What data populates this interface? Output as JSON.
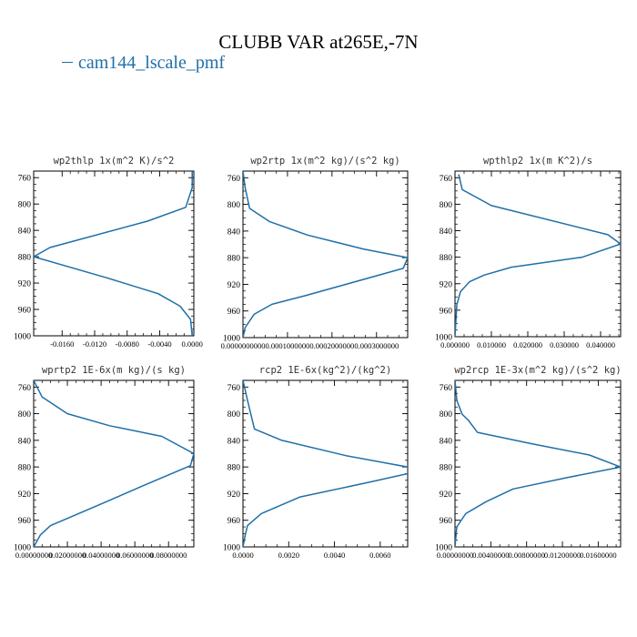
{
  "figure_title": "CLUBB VAR at265E,-7N",
  "legend_label": "cam144_lscale_pmf",
  "colors": {
    "line": "#1f6fa8",
    "axes": "#000000",
    "text": "#333333"
  },
  "chart_data": [
    {
      "type": "line",
      "title": "wp2thlp  1x(m^2 K)/s^2",
      "xlim": [
        -0.0195,
        0.0002
      ],
      "ylim": [
        1000,
        750
      ],
      "y_ticks": [
        760,
        800,
        840,
        880,
        920,
        960,
        1000
      ],
      "x_ticks": [
        -0.016,
        -0.012,
        -0.008,
        -0.004,
        0.0
      ],
      "x_tick_labels": [
        "-0.0160",
        "-0.0120",
        "-0.0080",
        "-0.0040",
        "0.0000"
      ],
      "series": [
        {
          "x": [
            0.0,
            0.0,
            -0.0008,
            -0.0055,
            -0.0175,
            -0.0195,
            -0.0105,
            -0.0042,
            -0.0015,
            -0.0002,
            0.0
          ],
          "y": [
            750,
            775,
            805,
            826,
            866,
            880,
            912,
            936,
            955,
            975,
            1000
          ]
        }
      ]
    },
    {
      "type": "line",
      "title": "wp2rtp  1x(m^2 kg)/(s^2 kg)",
      "xlim": [
        0.0,
        0.00037
      ],
      "ylim": [
        1000,
        750
      ],
      "y_ticks": [
        760,
        800,
        840,
        880,
        920,
        960,
        1000
      ],
      "x_ticks": [
        0.0,
        0.0001,
        0.0002,
        0.0003
      ],
      "x_tick_labels": [
        "0.0000000000",
        "0.0001000000",
        "0.0002000000",
        "0.0003000000"
      ],
      "series": [
        {
          "x": [
            0.0,
            5e-06,
            1.5e-05,
            6e-05,
            0.000145,
            0.00027,
            0.00037,
            0.00036,
            0.00014,
            6.5e-05,
            2.5e-05,
            5e-06,
            0.0
          ],
          "y": [
            750,
            775,
            806,
            826,
            846,
            867,
            880,
            896,
            937,
            950,
            965,
            985,
            1000
          ]
        }
      ]
    },
    {
      "type": "line",
      "title": "wpthlp2  1x(m K^2)/s",
      "xlim": [
        0.0,
        0.0455
      ],
      "ylim": [
        1000,
        750
      ],
      "y_ticks": [
        760,
        800,
        840,
        880,
        920,
        960,
        1000
      ],
      "x_ticks": [
        0.0,
        0.01,
        0.02,
        0.03,
        0.04
      ],
      "x_tick_labels": [
        "0.000000",
        "0.010000",
        "0.020000",
        "0.030000",
        "0.040000"
      ],
      "series": [
        {
          "x": [
            0.001,
            0.002,
            0.01,
            0.042,
            0.0455,
            0.035,
            0.0155,
            0.008,
            0.004,
            0.0015,
            0.0005,
            0.0
          ],
          "y": [
            755,
            778,
            802,
            846,
            860,
            880,
            895,
            907,
            917,
            932,
            952,
            1000
          ]
        }
      ]
    },
    {
      "type": "line",
      "title": "wprtp2  1E-6x(m kg)/(s kg)",
      "xlim": [
        0.0,
        0.095
      ],
      "ylim": [
        1000,
        750
      ],
      "y_ticks": [
        760,
        800,
        840,
        880,
        920,
        960,
        1000
      ],
      "x_ticks": [
        0.0,
        0.02,
        0.04,
        0.06,
        0.08
      ],
      "x_tick_labels": [
        "0.00000000",
        "0.02000000",
        "0.04000000",
        "0.06000000",
        "0.08000000"
      ],
      "series": [
        {
          "x": [
            0.0,
            0.005,
            0.02,
            0.045,
            0.076,
            0.095,
            0.093,
            0.065,
            0.045,
            0.022,
            0.01,
            0.004,
            0.0
          ],
          "y": [
            750,
            775,
            800,
            818,
            834,
            860,
            878,
            908,
            930,
            955,
            968,
            982,
            1000
          ]
        }
      ]
    },
    {
      "type": "line",
      "title": "rcp2  1E-6x(kg^2)/(kg^2)",
      "xlim": [
        0.0,
        0.0072
      ],
      "ylim": [
        1000,
        750
      ],
      "y_ticks": [
        760,
        800,
        840,
        880,
        920,
        960,
        1000
      ],
      "x_ticks": [
        0.0,
        0.002,
        0.004,
        0.006
      ],
      "x_tick_labels": [
        "0.0000",
        "0.0020",
        "0.0040",
        "0.0060"
      ],
      "series": [
        {
          "x": [
            0.0,
            0.0002,
            0.0005,
            0.0017,
            0.0045,
            0.0072,
            0.0072,
            0.0055,
            0.0025,
            0.0008,
            0.0002,
            0.0001,
            0.0
          ],
          "y": [
            750,
            780,
            823,
            840,
            863,
            880,
            890,
            903,
            925,
            950,
            968,
            982,
            1000
          ]
        }
      ]
    },
    {
      "type": "line",
      "title": "wp2rcp  1E-3x(m^2 kg)/(s^2 kg)",
      "xlim": [
        0.0,
        0.0185
      ],
      "ylim": [
        1000,
        750
      ],
      "y_ticks": [
        760,
        800,
        840,
        880,
        920,
        960,
        1000
      ],
      "x_ticks": [
        0.0,
        0.004,
        0.008,
        0.012,
        0.016
      ],
      "x_tick_labels": [
        "0.00000000",
        "0.00400000",
        "0.00800000",
        "0.01200000",
        "0.01600000"
      ],
      "series": [
        {
          "x": [
            0.0,
            0.0002,
            0.0008,
            0.0015,
            0.0025,
            0.0085,
            0.015,
            0.0185,
            0.0125,
            0.0065,
            0.0035,
            0.0012,
            0.0002,
            0.0
          ],
          "y": [
            750,
            780,
            801,
            810,
            828,
            845,
            862,
            880,
            896,
            913,
            932,
            950,
            970,
            1000
          ]
        }
      ]
    }
  ]
}
